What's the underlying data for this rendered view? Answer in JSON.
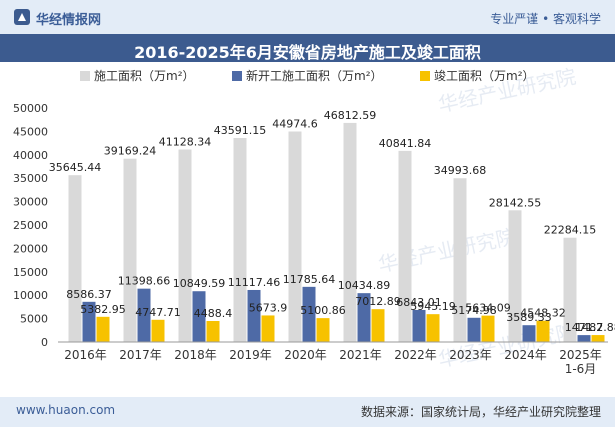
{
  "header": {
    "brand": "华经情报网",
    "slogan": "专业严谨 • 客观科学"
  },
  "footer": {
    "site": "www.huaon.com",
    "source": "数据来源：国家统计局，华经产业研究院整理"
  },
  "watermark": "华经产业研究院",
  "colors": {
    "series": [
      "#d9d9d9",
      "#4e6aa6",
      "#f7c200"
    ],
    "accent": "#3c5b8f"
  },
  "chart_data": {
    "type": "bar",
    "title": "2016-2025年6月安徽省房地产施工及竣工面积",
    "categories": [
      "2016年",
      "2017年",
      "2018年",
      "2019年",
      "2020年",
      "2021年",
      "2022年",
      "2023年",
      "2024年",
      "2025年\n1-6月"
    ],
    "series": [
      {
        "name": "施工面积（万m²）",
        "values": [
          35645.44,
          39169.24,
          41128.34,
          43591.15,
          44974.6,
          46812.59,
          40841.84,
          34993.68,
          28142.55,
          22284.15
        ]
      },
      {
        "name": "新开工施工面积（万m²）",
        "values": [
          8586.37,
          11398.66,
          10849.59,
          11117.46,
          11785.64,
          10434.89,
          6843.01,
          5174.98,
          3589.33,
          1471.7
        ]
      },
      {
        "name": "竣工面积（万m²）",
        "values": [
          5382.95,
          4747.71,
          4488.4,
          5673.9,
          5100.86,
          7012.89,
          5945.19,
          5634.09,
          4548.32,
          1482.88
        ]
      }
    ],
    "value_labels": [
      [
        "35645.44",
        "39169.24",
        "41128.34",
        "43591.15",
        "44974.6",
        "46812.59",
        "40841.84",
        "34993.68",
        "28142.55",
        "22284.15"
      ],
      [
        "8586.37",
        "11398.66",
        "10849.59",
        "11117.46",
        "11785.64",
        "10434.89",
        "6843.01",
        "5174.98",
        "3589.33",
        "1471.7"
      ],
      [
        "5382.95",
        "4747.71",
        "4488.4",
        "5673.9",
        "5100.86",
        "7012.89",
        "5945.19",
        "5634.09",
        "4548.32",
        "1482.88"
      ]
    ],
    "yticks": [
      "0",
      "5000",
      "10000",
      "15000",
      "20000",
      "25000",
      "30000",
      "35000",
      "40000",
      "45000",
      "50000"
    ],
    "ylim": [
      0,
      50000
    ],
    "grid": false,
    "legend_position": "top"
  }
}
